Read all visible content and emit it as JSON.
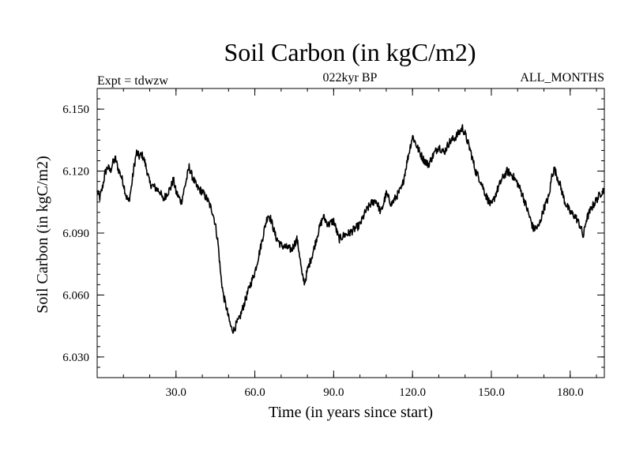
{
  "chart_data": {
    "type": "line",
    "title": "Soil Carbon (in kgC/m2)",
    "subtitle_left": "Expt = tdwzw",
    "subtitle_center": "022kyr BP",
    "subtitle_right": "ALL_MONTHS",
    "xlabel": "Time (in years since start)",
    "ylabel": "Soil Carbon (in kgC/m2)",
    "xlim": [
      0,
      193
    ],
    "ylim": [
      6.02,
      6.16
    ],
    "xticks": [
      30,
      60,
      90,
      120,
      150,
      180
    ],
    "xtick_labels": [
      "30.0",
      "60.0",
      "90.0",
      "120.0",
      "150.0",
      "180.0"
    ],
    "yticks": [
      6.03,
      6.06,
      6.09,
      6.12,
      6.15
    ],
    "ytick_labels": [
      "6.030",
      "6.060",
      "6.090",
      "6.120",
      "6.150"
    ],
    "series": [
      {
        "name": "Soil Carbon",
        "color": "#000000",
        "x": [
          0,
          1,
          2,
          3,
          4,
          5,
          6,
          7,
          8,
          9,
          10,
          11,
          12,
          13,
          14,
          15,
          16,
          17,
          18,
          19,
          20,
          22,
          24,
          25,
          26,
          28,
          29,
          30,
          32,
          34,
          35,
          36,
          38,
          40,
          42,
          44,
          45,
          46,
          47,
          48,
          49,
          50,
          51,
          52,
          53,
          54,
          55,
          56,
          58,
          60,
          62,
          64,
          65,
          66,
          68,
          70,
          72,
          74,
          76,
          77,
          78,
          79,
          80,
          82,
          84,
          86,
          88,
          90,
          92,
          94,
          96,
          98,
          100,
          102,
          104,
          106,
          108,
          110,
          112,
          114,
          116,
          118,
          120,
          122,
          124,
          126,
          128,
          130,
          132,
          134,
          136,
          138,
          139,
          140,
          142,
          144,
          146,
          148,
          150,
          152,
          154,
          156,
          158,
          160,
          162,
          164,
          166,
          168,
          170,
          172,
          173,
          174,
          176,
          178,
          180,
          182,
          184,
          185,
          186,
          188,
          190,
          192,
          193
        ],
        "values": [
          6.11,
          6.107,
          6.112,
          6.119,
          6.122,
          6.12,
          6.124,
          6.126,
          6.121,
          6.118,
          6.114,
          6.108,
          6.105,
          6.112,
          6.122,
          6.129,
          6.127,
          6.128,
          6.125,
          6.12,
          6.114,
          6.112,
          6.11,
          6.106,
          6.108,
          6.112,
          6.116,
          6.11,
          6.105,
          6.116,
          6.122,
          6.118,
          6.112,
          6.11,
          6.106,
          6.1,
          6.094,
          6.085,
          6.07,
          6.06,
          6.055,
          6.049,
          6.044,
          6.043,
          6.046,
          6.048,
          6.052,
          6.056,
          6.064,
          6.071,
          6.082,
          6.094,
          6.099,
          6.097,
          6.088,
          6.084,
          6.083,
          6.082,
          6.087,
          6.08,
          6.069,
          6.066,
          6.072,
          6.08,
          6.09,
          6.098,
          6.094,
          6.096,
          6.087,
          6.089,
          6.09,
          6.092,
          6.094,
          6.1,
          6.104,
          6.106,
          6.1,
          6.109,
          6.104,
          6.108,
          6.112,
          6.125,
          6.137,
          6.131,
          6.126,
          6.123,
          6.128,
          6.132,
          6.129,
          6.134,
          6.136,
          6.139,
          6.141,
          6.138,
          6.13,
          6.12,
          6.115,
          6.108,
          6.103,
          6.11,
          6.116,
          6.12,
          6.118,
          6.114,
          6.108,
          6.1,
          6.092,
          6.093,
          6.102,
          6.108,
          6.118,
          6.121,
          6.114,
          6.105,
          6.1,
          6.098,
          6.093,
          6.088,
          6.096,
          6.102,
          6.106,
          6.11,
          6.111
        ]
      }
    ]
  }
}
